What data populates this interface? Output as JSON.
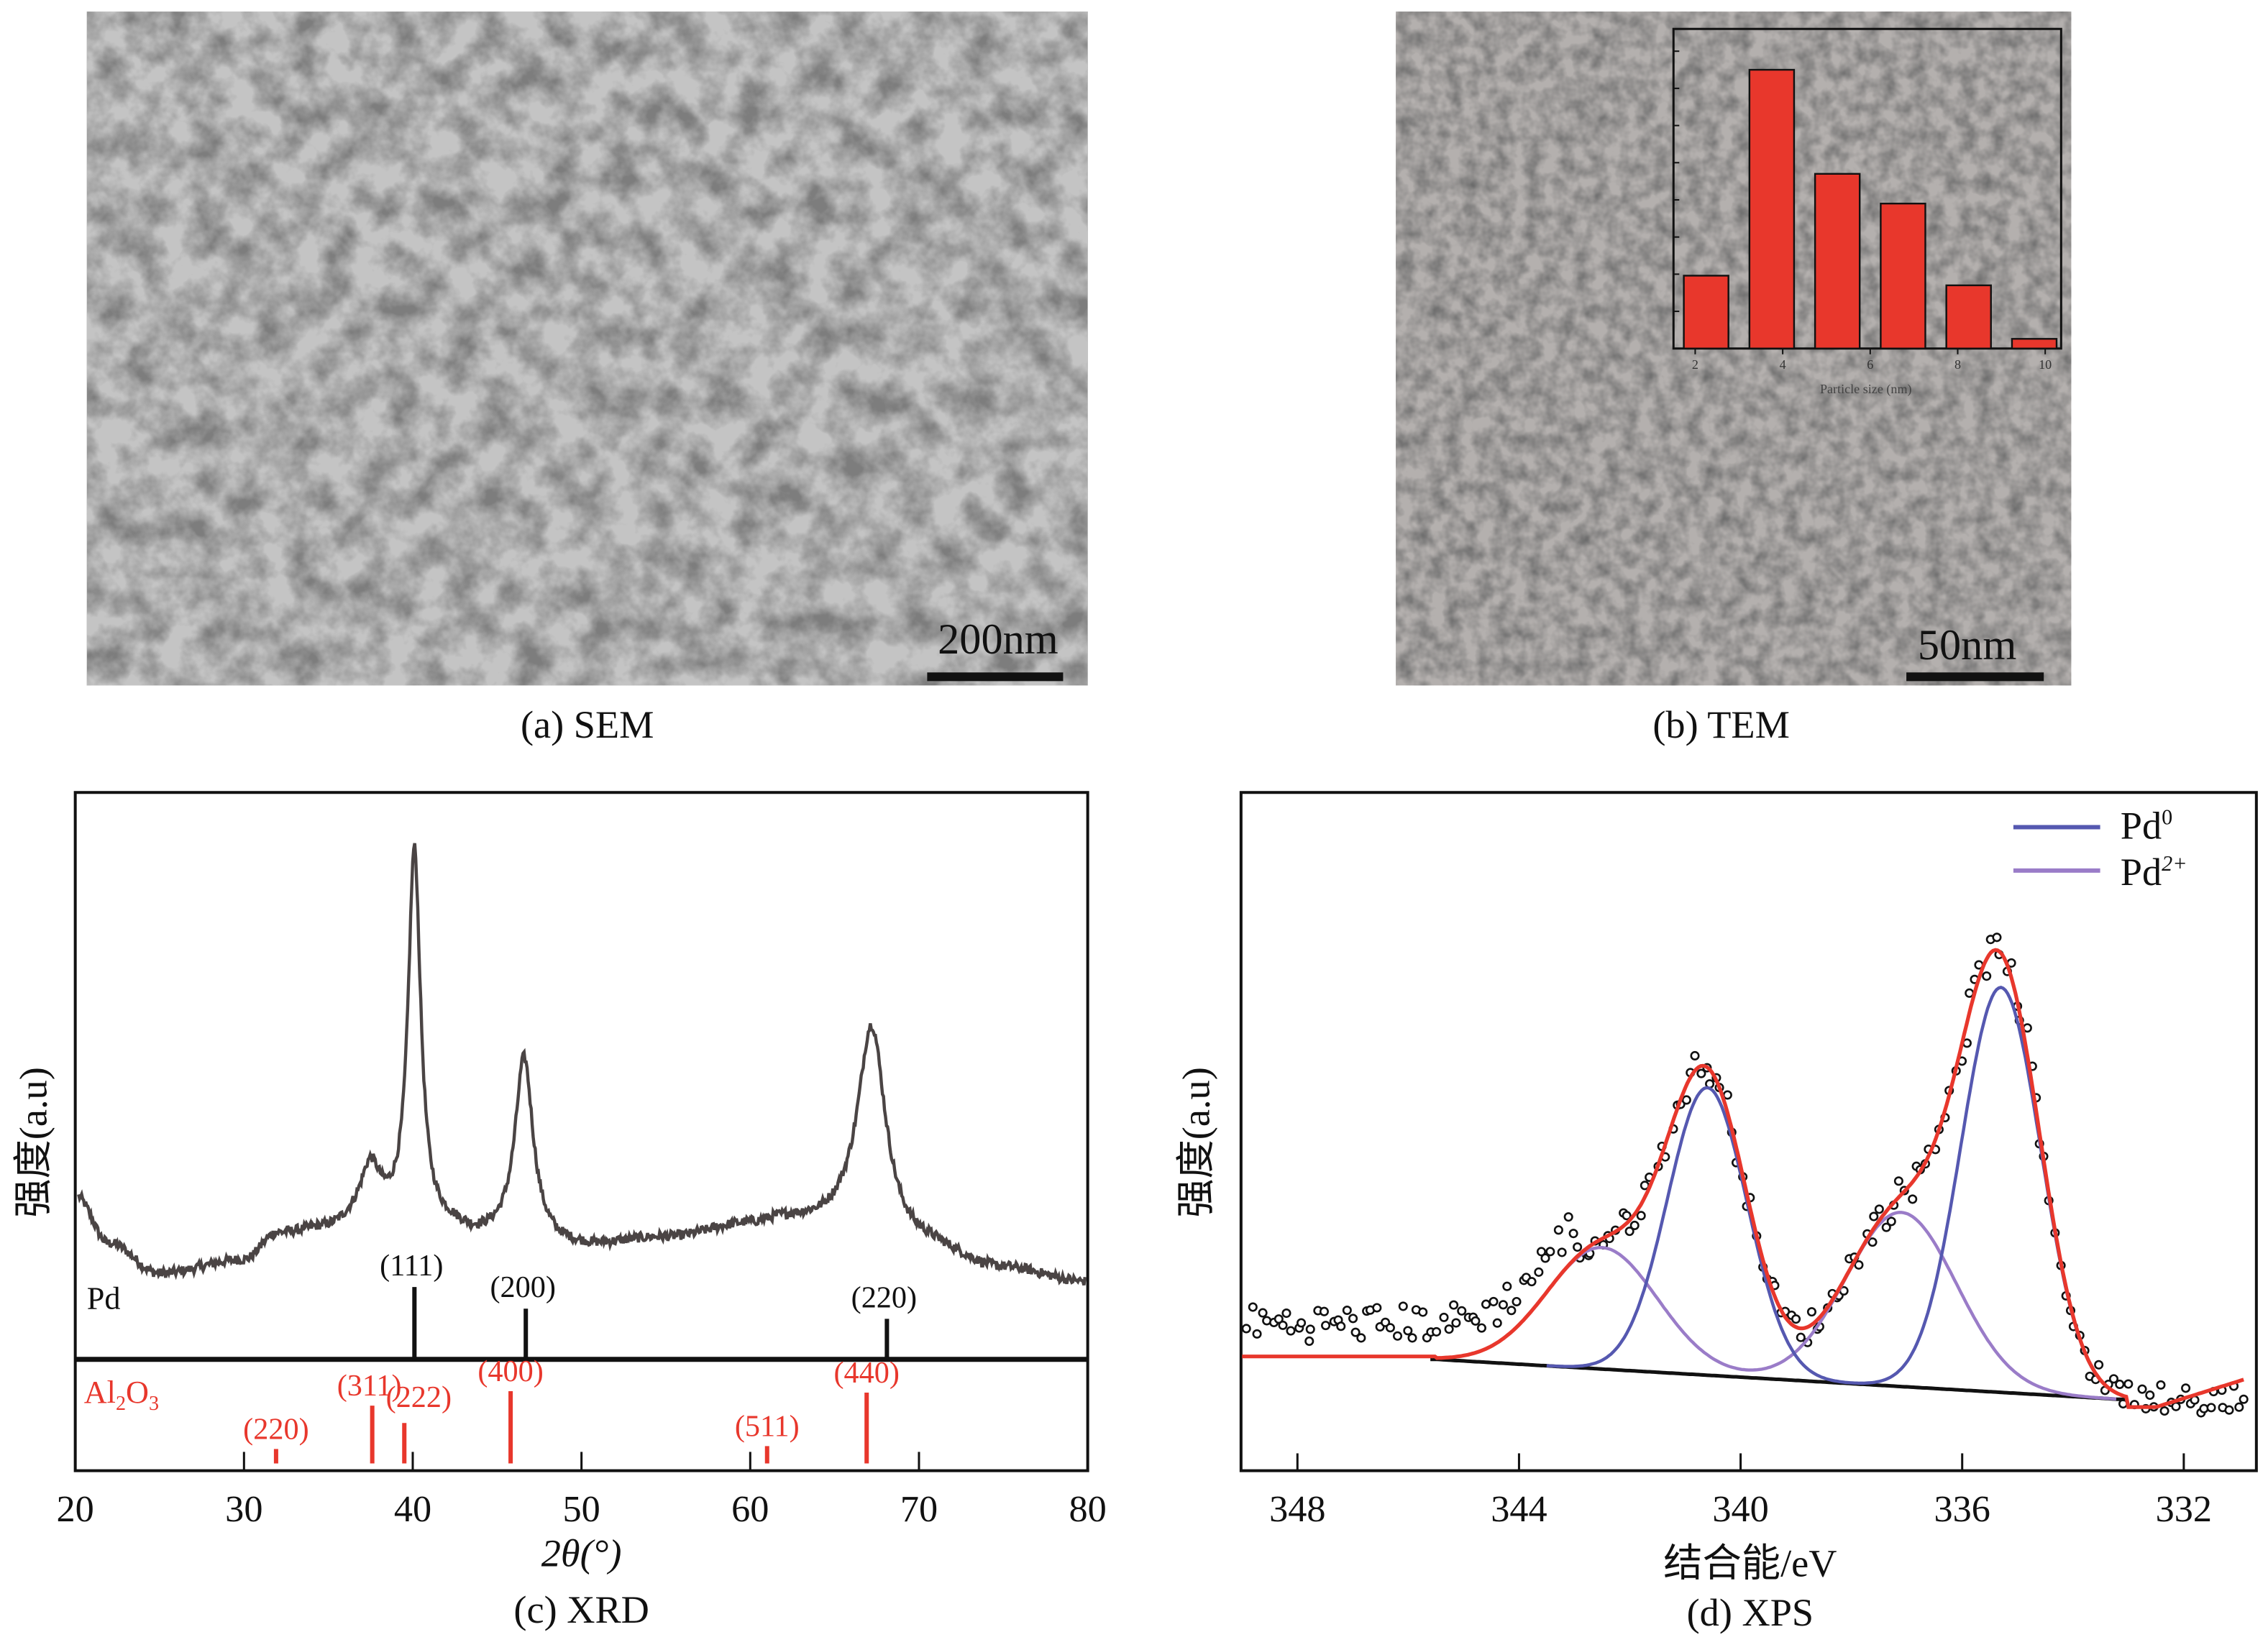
{
  "panels": {
    "sem": {
      "caption": "(a) SEM",
      "scale_bar": "200nm"
    },
    "tem": {
      "caption": "(b) TEM",
      "scale_bar": "50nm"
    },
    "xrd": {
      "caption": "(c) XRD"
    },
    "xps": {
      "caption": "(d) XPS"
    }
  },
  "colors": {
    "red": "#e8372c",
    "pd0": "#5558b0",
    "pd2": "#9a7cc8",
    "curve": "#4a4444"
  },
  "chart_data": [
    {
      "id": "tem-inset",
      "type": "bar",
      "xlabel": "Particle size (nm)",
      "x_ticks": [
        2,
        4,
        6,
        8,
        10
      ],
      "xlim": [
        1.5,
        10.8
      ],
      "ylim": [
        0,
        42
      ],
      "y_tick_step": 5,
      "bin_width": 1.5,
      "categories": [
        2.25,
        3.75,
        5.25,
        6.75,
        8.25,
        9.75
      ],
      "values": [
        9.8,
        37.5,
        23.5,
        19.5,
        8.5,
        1.3
      ]
    },
    {
      "id": "xrd",
      "type": "line",
      "xlabel": "2θ(°)",
      "ylabel": "强度(a.u)",
      "xlim": [
        20,
        80
      ],
      "x_ticks": [
        20,
        30,
        40,
        50,
        60,
        70,
        80
      ],
      "background": [
        [
          20,
          21
        ],
        [
          22,
          10
        ],
        [
          25,
          3
        ],
        [
          30,
          6
        ],
        [
          32,
          12
        ],
        [
          35,
          13
        ],
        [
          37,
          15
        ],
        [
          42,
          13
        ],
        [
          44,
          11
        ],
        [
          50,
          9
        ],
        [
          55,
          11
        ],
        [
          60,
          14
        ],
        [
          62,
          15
        ],
        [
          65,
          14
        ],
        [
          70,
          9
        ],
        [
          75,
          4
        ],
        [
          80,
          1
        ]
      ],
      "peaks": [
        {
          "x": 40.1,
          "h": 86,
          "w": 0.45
        },
        {
          "x": 37.5,
          "h": 12,
          "w": 0.7
        },
        {
          "x": 46.6,
          "h": 42,
          "w": 0.65
        },
        {
          "x": 67.2,
          "h": 48,
          "w": 1.0
        }
      ],
      "reference": [
        {
          "name": "Pd",
          "sticks": [
            {
              "x": 40.1,
              "rel": 100,
              "hkl": "(111)"
            },
            {
              "x": 46.7,
              "rel": 70,
              "hkl": "(200)"
            },
            {
              "x": 68.1,
              "rel": 56,
              "hkl": "(220)"
            }
          ]
        },
        {
          "name": "Al2O3",
          "label_main": "Al",
          "sub1": "2",
          "label_mid": "O",
          "sub2": "3",
          "sticks": [
            {
              "x": 31.9,
              "rel": 20,
              "hkl": "(220)"
            },
            {
              "x": 37.6,
              "rel": 80,
              "hkl": "(311)"
            },
            {
              "x": 39.5,
              "rel": 56,
              "hkl": "(222)"
            },
            {
              "x": 45.8,
              "rel": 100,
              "hkl": "(400)"
            },
            {
              "x": 61.0,
              "rel": 24,
              "hkl": "(511)"
            },
            {
              "x": 66.9,
              "rel": 98,
              "hkl": "(440)"
            }
          ]
        }
      ]
    },
    {
      "id": "xps",
      "type": "line",
      "xlabel": "结合能/eV",
      "ylabel": "强度(a.u)",
      "xlim": [
        349.0,
        330.7
      ],
      "x_ticks": [
        348,
        344,
        340,
        336,
        332
      ],
      "legend": {
        "position": "top-right",
        "entries": [
          {
            "label": "Pd",
            "sup": "0",
            "series": "Pd0"
          },
          {
            "label": "Pd",
            "sup": "2+",
            "series": "Pd2+"
          }
        ]
      },
      "components": [
        {
          "series": "Pd0",
          "x": 335.3,
          "h": 100,
          "sigma": 0.72
        },
        {
          "series": "Pd0",
          "x": 340.6,
          "h": 71,
          "sigma": 0.72
        },
        {
          "series": "Pd2+",
          "x": 337.1,
          "h": 43,
          "sigma": 1.0
        },
        {
          "series": "Pd2+",
          "x": 342.5,
          "h": 30,
          "sigma": 1.0
        }
      ],
      "baseline": [
        [
          345.5,
          0
        ],
        [
          333.0,
          -10
        ]
      ],
      "data_points": {
        "start": 348.9,
        "end": 330.9,
        "step": 0.09
      }
    }
  ]
}
